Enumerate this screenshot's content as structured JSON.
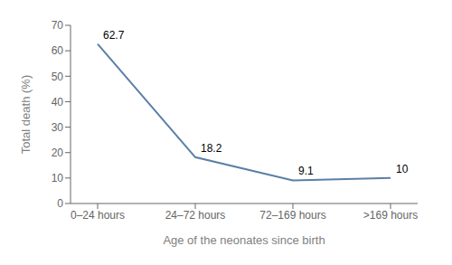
{
  "chart_data": {
    "type": "line",
    "categories": [
      "0–24 hours",
      "24–72 hours",
      "72–169 hours",
      ">169 hours"
    ],
    "values": [
      62.7,
      18.2,
      9.1,
      10
    ],
    "xlabel": "Age of the neonates since birth",
    "ylabel": "Total death (%)",
    "ylim": [
      0,
      70
    ],
    "yticks": [
      0,
      10,
      20,
      30,
      40,
      50,
      60,
      70
    ],
    "color": "#5b7fa6",
    "grid": false,
    "data_labels": true
  }
}
